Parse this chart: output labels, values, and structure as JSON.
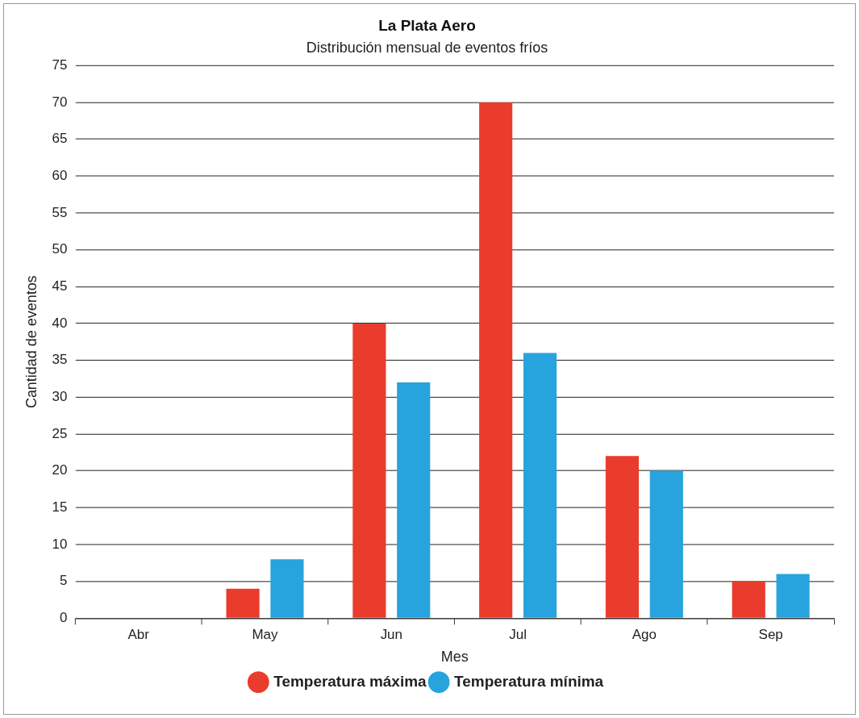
{
  "chart_data": {
    "type": "bar",
    "title": "La Plata Aero",
    "subtitle": "Distribución mensual de eventos fríos",
    "xlabel": "Mes",
    "ylabel": "Cantidad de eventos",
    "categories": [
      "Abr",
      "May",
      "Jun",
      "Jul",
      "Ago",
      "Sep"
    ],
    "series": [
      {
        "name": "Temperatura máxima",
        "color": "#e93c2c",
        "values": [
          0,
          4,
          40,
          70,
          22,
          5
        ]
      },
      {
        "name": "Temperatura mínima",
        "color": "#27a3dd",
        "values": [
          0,
          8,
          32,
          36,
          20,
          6
        ]
      }
    ],
    "ylim": [
      0,
      75
    ],
    "yticks": [
      0,
      5,
      10,
      15,
      20,
      25,
      30,
      35,
      40,
      45,
      50,
      55,
      60,
      65,
      70,
      75
    ],
    "grid": "y",
    "legend": "bottom"
  }
}
